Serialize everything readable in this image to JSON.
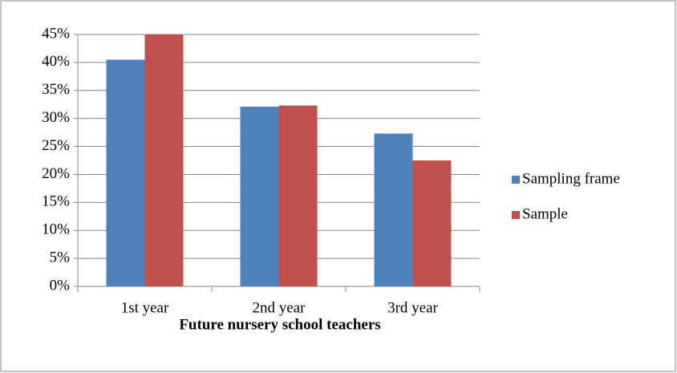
{
  "chart_data": {
    "type": "bar",
    "x_label": "Future nursery school teachers",
    "categories": [
      "1st year",
      "2nd year",
      "3rd year"
    ],
    "series": [
      {
        "name": "Sampling frame",
        "color": "#4f81bd",
        "values": [
          40.5,
          32.1,
          27.3
        ]
      },
      {
        "name": "Sample",
        "color": "#c0504d",
        "values": [
          45.0,
          32.3,
          22.5
        ]
      }
    ],
    "ylim": [
      0,
      45
    ],
    "yticks": [
      {
        "value": 0,
        "label": "0%"
      },
      {
        "value": 5,
        "label": "5%"
      },
      {
        "value": 10,
        "label": "10%"
      },
      {
        "value": 15,
        "label": "15%"
      },
      {
        "value": 20,
        "label": "20%"
      },
      {
        "value": 25,
        "label": "25%"
      },
      {
        "value": 30,
        "label": "30%"
      },
      {
        "value": 35,
        "label": "35%"
      },
      {
        "value": 40,
        "label": "40%"
      },
      {
        "value": 45,
        "label": "45%"
      }
    ],
    "grid": true,
    "legend": "right"
  }
}
